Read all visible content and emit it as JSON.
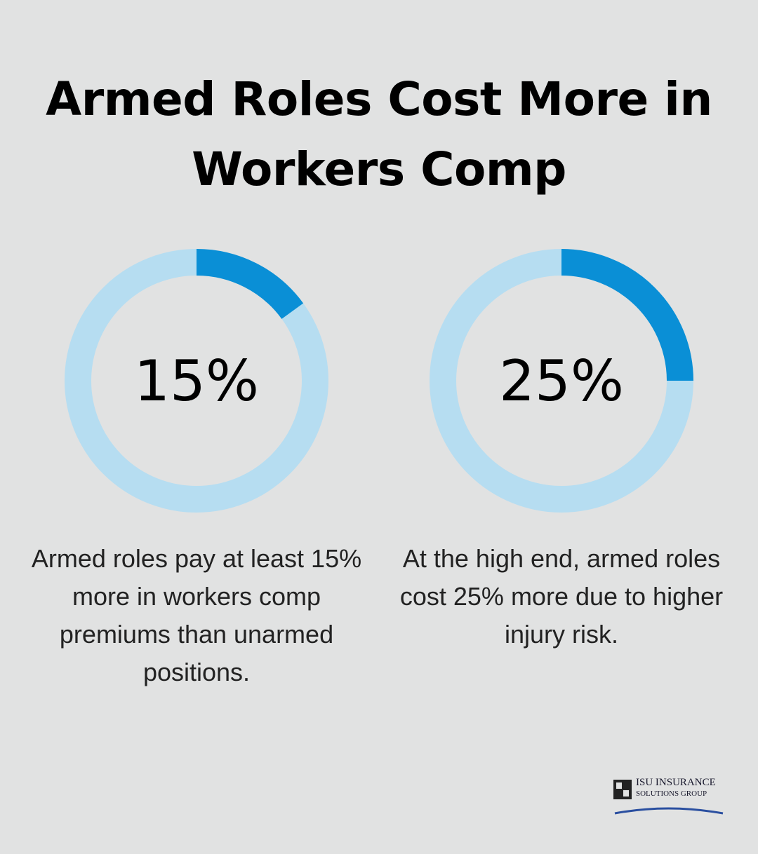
{
  "title": "Armed Roles Cost More in Workers Comp",
  "chart_data": [
    {
      "type": "donut",
      "values": [
        15
      ],
      "value_labels": [
        "15%"
      ],
      "ylim": [
        0,
        100
      ],
      "color": "#0a8fd6",
      "track_color": "#b6ddf1",
      "caption": "Armed roles pay at least 15% more in workers comp premiums than unarmed positions."
    },
    {
      "type": "donut",
      "values": [
        25
      ],
      "value_labels": [
        "25%"
      ],
      "ylim": [
        0,
        100
      ],
      "color": "#0a8fd6",
      "track_color": "#b6ddf1",
      "caption": "At the high end, armed roles cost 25% more due to higher injury risk."
    }
  ],
  "logo": {
    "line1": "ISU INSURANCE",
    "line2": "SOLUTIONS GROUP"
  }
}
